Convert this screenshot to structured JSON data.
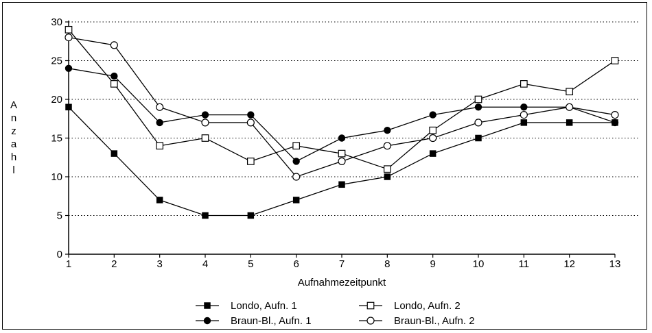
{
  "chart_data": {
    "type": "line",
    "title": "",
    "xlabel": "Aufnahmezeitpunkt",
    "ylabel": "Anzahl",
    "x": [
      1,
      2,
      3,
      4,
      5,
      6,
      7,
      8,
      9,
      10,
      11,
      12,
      13
    ],
    "xlim": [
      1,
      13
    ],
    "ylim": [
      0,
      30
    ],
    "yticks": [
      0,
      5,
      10,
      15,
      20,
      25,
      30
    ],
    "grid": "horizontal dotted",
    "legend_position": "bottom",
    "series": [
      {
        "name": "Londo, Aufn. 1",
        "marker": "filled-square",
        "color": "#000000",
        "values": [
          19,
          13,
          7,
          5,
          5,
          7,
          9,
          10,
          13,
          15,
          17,
          17,
          17
        ]
      },
      {
        "name": "Londo, Aufn. 2",
        "marker": "open-square",
        "color": "#000000",
        "values": [
          29,
          22,
          14,
          15,
          12,
          14,
          13,
          11,
          16,
          20,
          22,
          21,
          25
        ]
      },
      {
        "name": "Braun-Bl., Aufn. 1",
        "marker": "filled-circle",
        "color": "#000000",
        "values": [
          24,
          23,
          17,
          18,
          18,
          12,
          15,
          16,
          18,
          19,
          19,
          19,
          17
        ]
      },
      {
        "name": "Braun-Bl., Aufn. 2",
        "marker": "open-circle",
        "color": "#000000",
        "values": [
          28,
          27,
          19,
          17,
          17,
          10,
          12,
          14,
          15,
          17,
          18,
          19,
          18
        ]
      }
    ]
  }
}
